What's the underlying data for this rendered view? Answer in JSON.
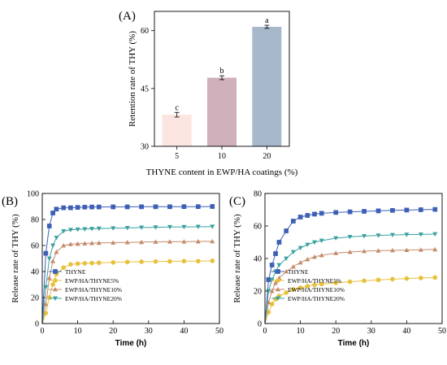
{
  "chart_data": [
    {
      "panel_label": "(A)",
      "type": "bar",
      "categories": [
        "5",
        "10",
        "20"
      ],
      "values": [
        38.2,
        47.8,
        61.0
      ],
      "errors": [
        0.6,
        0.5,
        0.4
      ],
      "letters": [
        "c",
        "b",
        "a"
      ],
      "colors": [
        "#fbe5e0",
        "#d0b0bb",
        "#a7b8cb"
      ],
      "xlabel": "THYNE content in EWP/HA coatings (%)",
      "ylabel": "Retention rate of THY (%)",
      "ylim": [
        30,
        65
      ],
      "yticks": [
        30,
        45,
        60
      ],
      "grid": false
    },
    {
      "panel_label": "(B)",
      "type": "line",
      "xlabel": "Time (h)",
      "ylabel": "Release rate of THY (%)",
      "xlim": [
        0,
        50
      ],
      "ylim": [
        0,
        100
      ],
      "xticks": [
        0,
        10,
        20,
        30,
        40,
        50
      ],
      "yticks": [
        0,
        20,
        40,
        60,
        80,
        100
      ],
      "legend_position": "bottom-right",
      "series": [
        {
          "name": "THYNE",
          "color": "#3d5fb5",
          "marker": "square",
          "x": [
            0,
            1,
            2,
            3,
            4,
            6,
            8,
            10,
            12,
            14,
            16,
            20,
            24,
            28,
            32,
            36,
            40,
            44,
            48
          ],
          "y": [
            0,
            54,
            75,
            85,
            88,
            89,
            89,
            89.3,
            89.5,
            89.6,
            89.6,
            89.7,
            89.7,
            89.8,
            89.8,
            89.8,
            89.9,
            89.9,
            90
          ]
        },
        {
          "name": "EWP/HA/THYNE5%",
          "color": "#e8c13c",
          "marker": "circle",
          "x": [
            0,
            1,
            2,
            3,
            4,
            6,
            8,
            10,
            12,
            14,
            16,
            20,
            24,
            28,
            32,
            36,
            40,
            44,
            48
          ],
          "y": [
            0,
            8,
            20,
            30,
            38,
            43,
            45.5,
            46,
            46.3,
            46.5,
            46.7,
            47,
            47.3,
            47.5,
            47.7,
            47.8,
            48,
            48,
            48.2
          ]
        },
        {
          "name": "EWP/HA/THYNE10%",
          "color": "#c48a6a",
          "marker": "triangle-up",
          "x": [
            0,
            1,
            2,
            3,
            4,
            6,
            8,
            10,
            12,
            14,
            16,
            20,
            24,
            28,
            32,
            36,
            40,
            44,
            48
          ],
          "y": [
            0,
            15,
            35,
            48,
            55,
            60,
            61,
            61.3,
            61.6,
            61.8,
            62,
            62.2,
            62.4,
            62.6,
            62.8,
            63,
            63,
            63.1,
            63.2
          ]
        },
        {
          "name": "EWP/HA/THYNE20%",
          "color": "#3ca0a0",
          "marker": "triangle-down",
          "x": [
            0,
            1,
            2,
            3,
            4,
            6,
            8,
            10,
            12,
            14,
            16,
            20,
            24,
            28,
            32,
            36,
            40,
            44,
            48
          ],
          "y": [
            0,
            28,
            50,
            60,
            66,
            71,
            72,
            72.3,
            72.6,
            72.8,
            73,
            73.3,
            73.5,
            73.8,
            74,
            74.2,
            74.3,
            74.4,
            74.5
          ]
        }
      ]
    },
    {
      "panel_label": "(C)",
      "type": "line",
      "xlabel": "Time (h)",
      "ylabel": "Release rate of THY (%)",
      "xlim": [
        0,
        50
      ],
      "ylim": [
        0,
        80
      ],
      "xticks": [
        0,
        10,
        20,
        30,
        40,
        50
      ],
      "yticks": [
        0,
        20,
        40,
        60,
        80
      ],
      "legend_position": "bottom-right",
      "series": [
        {
          "name": "THYNE",
          "color": "#3d5fb5",
          "marker": "square",
          "x": [
            0,
            1,
            2,
            3,
            4,
            6,
            8,
            10,
            12,
            14,
            16,
            20,
            24,
            28,
            32,
            36,
            40,
            44,
            48
          ],
          "y": [
            0,
            27,
            36,
            43,
            50,
            57,
            63,
            65.5,
            66.5,
            67.3,
            67.8,
            68.3,
            68.7,
            69,
            69.3,
            69.6,
            69.8,
            70,
            70.2
          ]
        },
        {
          "name": "EWP/HA/THYNE5%",
          "color": "#e8c13c",
          "marker": "circle",
          "x": [
            0,
            1,
            2,
            3,
            4,
            6,
            8,
            10,
            12,
            14,
            16,
            20,
            24,
            28,
            32,
            36,
            40,
            44,
            48
          ],
          "y": [
            0,
            7,
            12,
            15,
            17,
            19,
            21,
            22,
            23,
            23.8,
            24.3,
            25,
            25.7,
            26.3,
            26.8,
            27.3,
            27.7,
            28,
            28.3
          ]
        },
        {
          "name": "EWP/HA/THYNE10%",
          "color": "#c48a6a",
          "marker": "triangle-up",
          "x": [
            0,
            1,
            2,
            3,
            4,
            6,
            8,
            10,
            12,
            14,
            16,
            20,
            24,
            28,
            32,
            36,
            40,
            44,
            48
          ],
          "y": [
            0,
            13,
            20,
            25,
            28,
            32,
            35,
            37.5,
            39.5,
            41,
            42,
            43.3,
            44,
            44.5,
            44.8,
            45,
            45.2,
            45.4,
            45.6
          ]
        },
        {
          "name": "EWP/HA/THYNE20%",
          "color": "#3ca0a0",
          "marker": "triangle-down",
          "x": [
            0,
            1,
            2,
            3,
            4,
            6,
            8,
            10,
            12,
            14,
            16,
            20,
            24,
            28,
            32,
            36,
            40,
            44,
            48
          ],
          "y": [
            0,
            20,
            27,
            32,
            36,
            40,
            44,
            46.5,
            48.5,
            50,
            51,
            52.5,
            53.3,
            53.8,
            54.2,
            54.5,
            54.7,
            54.8,
            55
          ]
        }
      ]
    }
  ]
}
